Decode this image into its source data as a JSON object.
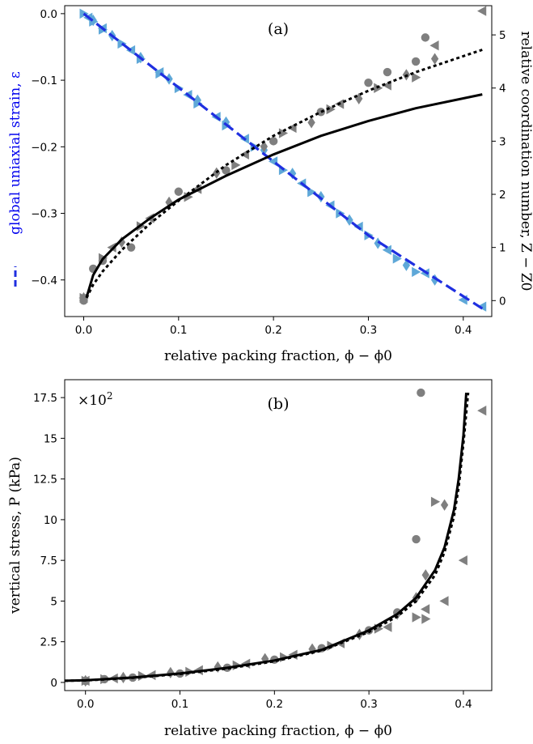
{
  "chart_data": [
    {
      "type": "scatter",
      "panel_label": "(a)",
      "xlabel": "relative packing fraction, ϕ − ϕ0",
      "ylabel_left": "global uniaxial strain, ε",
      "ylabel_right": "relative coordination number, Z − Z0",
      "xlim": [
        -0.02,
        0.43
      ],
      "ylim_left": [
        -0.455,
        0.012
      ],
      "ylim_right": [
        -0.3,
        5.55
      ],
      "xticks": [
        "0.0",
        "0.1",
        "0.2",
        "0.3",
        "0.4"
      ],
      "yticks_left": [
        "0.0",
        "−0.1",
        "−0.2",
        "−0.3",
        "−0.4"
      ],
      "yticks_right": [
        "0",
        "1",
        "2",
        "3",
        "4",
        "5"
      ],
      "colors": {
        "strain_line": "#1f2fe0",
        "strain_markers": "#5fa8d8",
        "z_markers": "#7f7f7f",
        "axis_left_text": "#0000ee"
      },
      "strain_fit_line": {
        "axis": "left",
        "style": "dashed",
        "color": "#1f2fe0",
        "x": [
          0.0,
          0.1,
          0.2,
          0.3,
          0.42
        ],
        "y": [
          0.0,
          -0.111,
          -0.222,
          -0.333,
          -0.443
        ]
      },
      "strain_series": [
        {
          "marker": "triangle-right",
          "axis": "left",
          "x": [
            0.0,
            0.01,
            0.02,
            0.04,
            0.06,
            0.08,
            0.1,
            0.12,
            0.15,
            0.18,
            0.21,
            0.24,
            0.27,
            0.3,
            0.33,
            0.35
          ],
          "y": [
            0.0,
            -0.012,
            -0.024,
            -0.045,
            -0.068,
            -0.09,
            -0.112,
            -0.135,
            -0.168,
            -0.2,
            -0.235,
            -0.268,
            -0.3,
            -0.333,
            -0.368,
            -0.388
          ]
        },
        {
          "marker": "triangle-left",
          "axis": "left",
          "x": [
            0.005,
            0.02,
            0.05,
            0.08,
            0.11,
            0.14,
            0.17,
            0.2,
            0.23,
            0.26,
            0.29,
            0.32,
            0.36,
            0.4,
            0.42
          ],
          "y": [
            -0.006,
            -0.022,
            -0.055,
            -0.088,
            -0.122,
            -0.155,
            -0.188,
            -0.222,
            -0.255,
            -0.288,
            -0.32,
            -0.355,
            -0.39,
            -0.43,
            -0.44
          ]
        },
        {
          "marker": "diamond",
          "axis": "left",
          "x": [
            0.01,
            0.03,
            0.06,
            0.09,
            0.12,
            0.15,
            0.19,
            0.22,
            0.25,
            0.28,
            0.31,
            0.34,
            0.37
          ],
          "y": [
            -0.01,
            -0.033,
            -0.066,
            -0.098,
            -0.13,
            -0.163,
            -0.205,
            -0.24,
            -0.275,
            -0.31,
            -0.345,
            -0.378,
            -0.4
          ]
        }
      ],
      "z_fit_lines": [
        {
          "name": "solid",
          "axis": "right",
          "style": "solid",
          "color": "#000000",
          "x": [
            0.003,
            0.01,
            0.02,
            0.04,
            0.07,
            0.1,
            0.15,
            0.2,
            0.25,
            0.3,
            0.35,
            0.42
          ],
          "y": [
            0.06,
            0.48,
            0.78,
            1.15,
            1.55,
            1.9,
            2.35,
            2.75,
            3.1,
            3.38,
            3.62,
            3.88
          ]
        },
        {
          "name": "dotted",
          "axis": "right",
          "style": "dotted",
          "color": "#000000",
          "x": [
            0.003,
            0.01,
            0.02,
            0.04,
            0.07,
            0.1,
            0.15,
            0.2,
            0.25,
            0.3,
            0.35,
            0.42
          ],
          "y": [
            0.05,
            0.3,
            0.55,
            0.95,
            1.45,
            1.88,
            2.55,
            3.1,
            3.55,
            3.95,
            4.3,
            4.72
          ]
        }
      ],
      "z_series": [
        {
          "marker": "circle",
          "axis": "right",
          "x": [
            0.0,
            0.01,
            0.02,
            0.05,
            0.1,
            0.15,
            0.2,
            0.25,
            0.3,
            0.32,
            0.35,
            0.36
          ],
          "y": [
            0.0,
            0.6,
            0.75,
            1.0,
            2.05,
            2.45,
            3.0,
            3.55,
            4.1,
            4.3,
            4.5,
            4.95
          ]
        },
        {
          "marker": "triangle-left",
          "axis": "right",
          "x": [
            0.0,
            0.03,
            0.07,
            0.12,
            0.17,
            0.22,
            0.27,
            0.32,
            0.37,
            0.42
          ],
          "y": [
            0.05,
            1.0,
            1.55,
            2.1,
            2.75,
            3.25,
            3.7,
            4.05,
            4.8,
            5.45
          ]
        },
        {
          "marker": "triangle-right",
          "axis": "right",
          "x": [
            0.0,
            0.02,
            0.06,
            0.11,
            0.16,
            0.21,
            0.26,
            0.31,
            0.35
          ],
          "y": [
            0.05,
            0.8,
            1.4,
            1.95,
            2.55,
            3.15,
            3.6,
            4.0,
            4.2
          ]
        },
        {
          "marker": "diamond",
          "axis": "right",
          "x": [
            0.0,
            0.04,
            0.09,
            0.14,
            0.19,
            0.24,
            0.29,
            0.34,
            0.37
          ],
          "y": [
            0.05,
            1.1,
            1.85,
            2.4,
            2.9,
            3.35,
            3.8,
            4.25,
            4.55
          ]
        }
      ]
    },
    {
      "type": "scatter",
      "panel_label": "(b)",
      "multiplier": "×10",
      "multiplier_exp": "2",
      "xlabel": "relative packing fraction, ϕ − ϕ0",
      "ylabel": "vertical stress, P (kPa)",
      "xlim": [
        -0.022,
        0.43
      ],
      "ylim": [
        -0.5,
        18.6
      ],
      "xticks": [
        "0.0",
        "0.1",
        "0.2",
        "0.3",
        "0.4"
      ],
      "yticks": [
        "0",
        "2.5",
        "5",
        "7.5",
        "10",
        "12.5",
        "15",
        "17.5"
      ],
      "fit_lines": [
        {
          "name": "solid",
          "style": "solid",
          "color": "#000000",
          "x": [
            -0.022,
            0.0,
            0.05,
            0.1,
            0.15,
            0.2,
            0.25,
            0.3,
            0.33,
            0.35,
            0.37,
            0.38,
            0.39,
            0.395,
            0.4,
            0.403
          ],
          "y": [
            0.1,
            0.13,
            0.3,
            0.55,
            0.9,
            1.35,
            2.0,
            3.2,
            4.2,
            5.2,
            6.9,
            8.3,
            10.6,
            12.5,
            15.2,
            17.8
          ]
        },
        {
          "name": "dotted",
          "style": "dotted",
          "color": "#000000",
          "x": [
            -0.022,
            0.0,
            0.05,
            0.1,
            0.15,
            0.2,
            0.25,
            0.3,
            0.33,
            0.35,
            0.37,
            0.38,
            0.39,
            0.395,
            0.4,
            0.405
          ],
          "y": [
            0.1,
            0.12,
            0.28,
            0.52,
            0.85,
            1.3,
            1.95,
            3.1,
            4.05,
            5.0,
            6.6,
            8.0,
            10.2,
            12.0,
            14.7,
            17.8
          ]
        }
      ],
      "series": [
        {
          "marker": "circle",
          "x": [
            0.0,
            0.02,
            0.05,
            0.1,
            0.15,
            0.2,
            0.25,
            0.3,
            0.33,
            0.35,
            0.355
          ],
          "y": [
            0.1,
            0.2,
            0.3,
            0.55,
            0.9,
            1.4,
            2.1,
            3.2,
            4.3,
            8.8,
            17.8
          ]
        },
        {
          "marker": "triangle-left",
          "x": [
            0.0,
            0.03,
            0.07,
            0.12,
            0.17,
            0.22,
            0.27,
            0.32,
            0.36,
            0.38,
            0.4,
            0.42
          ],
          "y": [
            0.1,
            0.25,
            0.45,
            0.75,
            1.15,
            1.7,
            2.4,
            3.4,
            4.5,
            5.0,
            7.5,
            16.7
          ]
        },
        {
          "marker": "triangle-right",
          "x": [
            0.0,
            0.02,
            0.06,
            0.11,
            0.16,
            0.21,
            0.26,
            0.31,
            0.35,
            0.36,
            0.37
          ],
          "y": [
            0.1,
            0.2,
            0.4,
            0.65,
            1.05,
            1.55,
            2.25,
            3.3,
            4.0,
            3.9,
            11.1
          ]
        },
        {
          "marker": "diamond",
          "x": [
            0.0,
            0.04,
            0.09,
            0.14,
            0.19,
            0.24,
            0.29,
            0.33,
            0.35,
            0.36,
            0.38
          ],
          "y": [
            0.1,
            0.3,
            0.6,
            0.95,
            1.45,
            2.05,
            2.95,
            4.2,
            5.2,
            6.6,
            10.9
          ]
        }
      ]
    }
  ]
}
